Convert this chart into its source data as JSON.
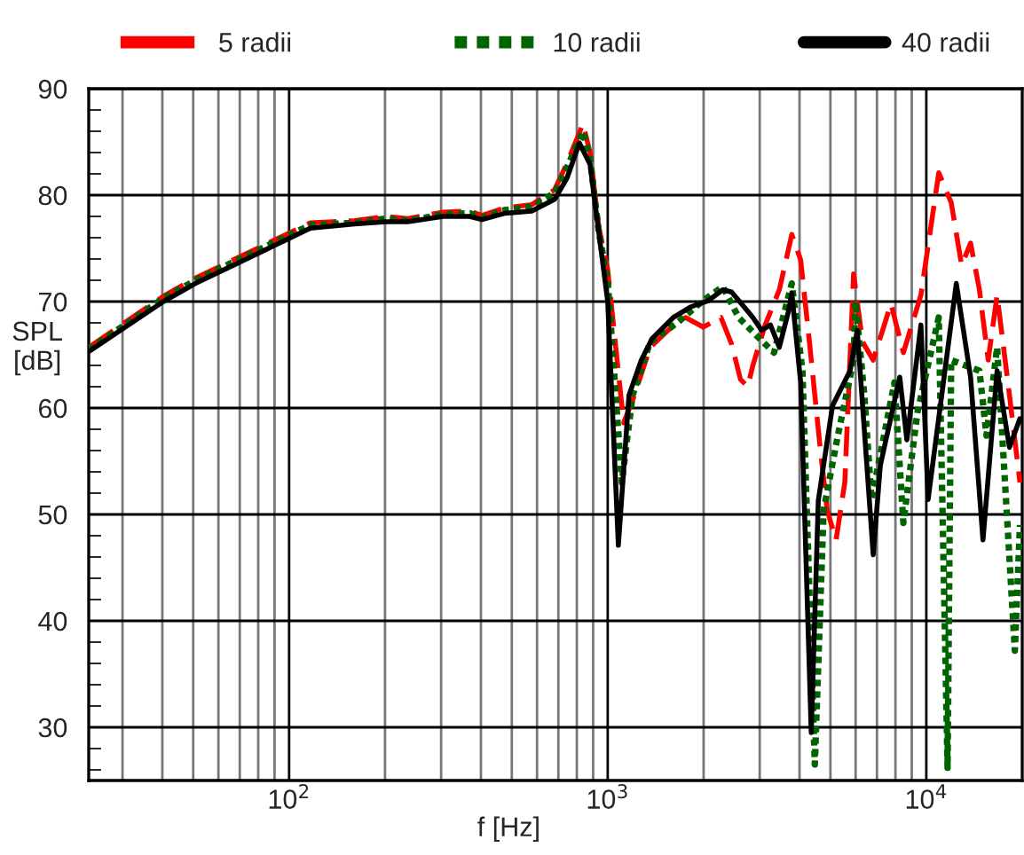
{
  "chart_data": {
    "type": "line",
    "xlabel": "f [Hz]",
    "ylabel": "SPL\n[dB]",
    "log": "x",
    "grid": true,
    "legend": "top",
    "xlim": [
      23.5,
      20000
    ],
    "ylim": [
      25,
      90
    ],
    "xticks": [
      {
        "value": 30,
        "label": null
      },
      {
        "value": 40,
        "label": null
      },
      {
        "value": 50,
        "label": null
      },
      {
        "value": 60,
        "label": null
      },
      {
        "value": 70,
        "label": null
      },
      {
        "value": 80,
        "label": null
      },
      {
        "value": 90,
        "label": null
      },
      {
        "value": 100,
        "label": "10$^{2}$"
      },
      {
        "value": 200,
        "label": null
      },
      {
        "value": 300,
        "label": null
      },
      {
        "value": 400,
        "label": null
      },
      {
        "value": 500,
        "label": null
      },
      {
        "value": 600,
        "label": null
      },
      {
        "value": 700,
        "label": null
      },
      {
        "value": 800,
        "label": null
      },
      {
        "value": 900,
        "label": null
      },
      {
        "value": 1000,
        "label": "10$^{3}$"
      },
      {
        "value": 2000,
        "label": null
      },
      {
        "value": 3000,
        "label": null
      },
      {
        "value": 4000,
        "label": null
      },
      {
        "value": 5000,
        "label": null
      },
      {
        "value": 6000,
        "label": null
      },
      {
        "value": 7000,
        "label": null
      },
      {
        "value": 8000,
        "label": null
      },
      {
        "value": 9000,
        "label": null
      },
      {
        "value": 10000,
        "label": "10$^{4}$"
      }
    ],
    "yticks": [
      {
        "value": 26,
        "label": null
      },
      {
        "value": 28,
        "label": null
      },
      30,
      {
        "value": 32,
        "label": null
      },
      {
        "value": 34,
        "label": null
      },
      {
        "value": 36,
        "label": null
      },
      {
        "value": 38,
        "label": null
      },
      40,
      {
        "value": 42,
        "label": null
      },
      {
        "value": 44,
        "label": null
      },
      {
        "value": 46,
        "label": null
      },
      {
        "value": 48,
        "label": null
      },
      50,
      {
        "value": 52,
        "label": null
      },
      {
        "value": 54,
        "label": null
      },
      {
        "value": 56,
        "label": null
      },
      {
        "value": 58,
        "label": null
      },
      60,
      {
        "value": 62,
        "label": null
      },
      {
        "value": 64,
        "label": null
      },
      {
        "value": 66,
        "label": null
      },
      {
        "value": 68,
        "label": null
      },
      70,
      {
        "value": 72,
        "label": null
      },
      {
        "value": 74,
        "label": null
      },
      {
        "value": 76,
        "label": null
      },
      {
        "value": 78,
        "label": null
      },
      80,
      {
        "value": 82,
        "label": null
      },
      {
        "value": 84,
        "label": null
      },
      {
        "value": 86,
        "label": null
      },
      {
        "value": 88,
        "label": null
      },
      90
    ],
    "series": [
      {
        "name": "5 radii",
        "color": "#ff0000",
        "line_style": "dashed",
        "x": [
          23.5,
          40.3,
          50.8,
          116.6,
          160.5,
          202,
          236,
          304,
          369,
          403,
          476,
          577,
          681,
          745,
          836,
          880,
          938,
          1000,
          1122,
          1197,
          1359,
          1545,
          1755,
          1995,
          2268,
          2448,
          2610,
          2750,
          2855,
          3120,
          3456,
          3783,
          4033,
          4297,
          4642,
          4884,
          5207,
          5548,
          5912,
          6310,
          6813,
          7745,
          8472,
          9616,
          10940,
          11970,
          12910,
          13770,
          14680,
          15640,
          16680,
          18240,
          19670
        ],
        "values": [
          65.7,
          70.5,
          72.2,
          77.4,
          77.6,
          78,
          77.8,
          78.4,
          78.5,
          78.1,
          78.8,
          79.1,
          80.5,
          83,
          86.7,
          84,
          77,
          73,
          58.6,
          60.7,
          65.7,
          67.3,
          68.5,
          67.6,
          68.5,
          66,
          62.7,
          62,
          64,
          67.8,
          71.1,
          76.3,
          73.9,
          66.2,
          56.3,
          50.4,
          47.6,
          53,
          72.6,
          66.2,
          64.5,
          69.8,
          65.2,
          70.6,
          82.1,
          79.3,
          73.4,
          75.5,
          71.1,
          64.5,
          70.6,
          61.2,
          53
        ]
      },
      {
        "name": "10 radii",
        "color": "#006400",
        "line_style": "dotted",
        "x": [
          23.5,
          40.3,
          50.8,
          116.6,
          160.5,
          202,
          236,
          304,
          369,
          403,
          476,
          577,
          681,
          745,
          836,
          880,
          938,
          1000,
          1107,
          1197,
          1359,
          1668,
          1995,
          2296,
          2577,
          2930,
          3327,
          3783,
          4085,
          4467,
          4761,
          5275,
          5912,
          5995,
          6391,
          6730,
          7943,
          8472,
          9380,
          10940,
          11660,
          11970,
          14680,
          15450,
          16680,
          18960,
          19670
        ],
        "values": [
          65.5,
          70.3,
          72,
          77.2,
          77.4,
          77.8,
          77.6,
          78.2,
          78.3,
          77.9,
          78.6,
          78.9,
          80.2,
          82.6,
          86,
          83.5,
          76.5,
          72,
          53,
          61.2,
          66.2,
          68.1,
          70.1,
          71.4,
          68.5,
          66.8,
          65.2,
          71.7,
          63.5,
          26.5,
          50.4,
          57.4,
          64.5,
          70,
          61.2,
          51.4,
          62.4,
          49.2,
          59.6,
          68.5,
          26.2,
          64.5,
          63.5,
          57.4,
          65.7,
          37.2,
          49
        ]
      },
      {
        "name": "40 radii",
        "color": "#000000",
        "line_style": "solid",
        "x": [
          23.5,
          40.3,
          50.8,
          116.6,
          160.5,
          202,
          236,
          304,
          369,
          403,
          476,
          577,
          681,
          745,
          815,
          880,
          1000,
          1080,
          1166,
          1275,
          1377,
          1606,
          1824,
          2073,
          2296,
          2448,
          2679,
          2855,
          3041,
          3243,
          3456,
          3687,
          3783,
          4033,
          4353,
          4581,
          5076,
          5764,
          6070,
          6813,
          7172,
          8254,
          8690,
          9616,
          10130,
          12420,
          13770,
          15060,
          16680,
          18240,
          19670
        ],
        "values": [
          65.3,
          70,
          71.7,
          76.9,
          77.3,
          77.5,
          77.5,
          78,
          78,
          77.7,
          78.3,
          78.5,
          79.6,
          81.6,
          84.9,
          82.9,
          70,
          47.1,
          61.2,
          64.5,
          66.5,
          68.5,
          69.5,
          70.1,
          71.1,
          70.9,
          69.5,
          68.5,
          67.3,
          67.8,
          65.7,
          69,
          70.8,
          62.4,
          29.5,
          51.3,
          60.2,
          63.5,
          67.3,
          46.2,
          54.6,
          62.9,
          57,
          67.8,
          51.4,
          71.7,
          62.9,
          47.6,
          63.5,
          56.3,
          59
        ]
      }
    ]
  }
}
